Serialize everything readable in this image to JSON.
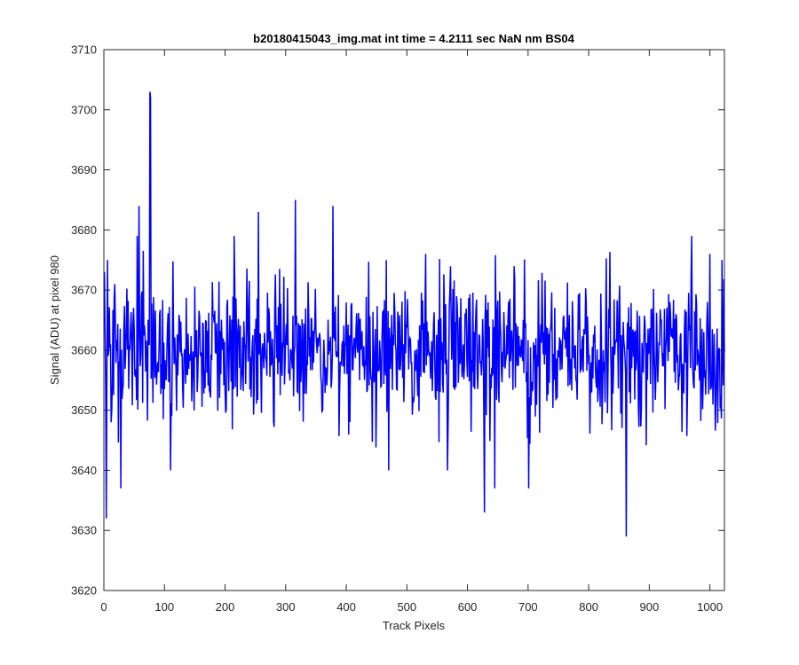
{
  "chart_data": {
    "type": "line",
    "title": "b20180415043_img.mat int time = 4.2111 sec  NaN nm BS04",
    "xlabel": "Track Pixels",
    "ylabel": "Signal (ADU) at pixel 980",
    "xlim": [
      0,
      1024
    ],
    "ylim": [
      3620,
      3710
    ],
    "xticks": [
      "0",
      "100",
      "200",
      "300",
      "400",
      "500",
      "600",
      "700",
      "800",
      "900",
      "1000"
    ],
    "yticks": [
      "3620",
      "3630",
      "3640",
      "3650",
      "3660",
      "3670",
      "3680",
      "3690",
      "3700",
      "3710"
    ],
    "grid": false,
    "legend": "none",
    "line_color": "#0000ff",
    "series": [
      {
        "x_start": 1,
        "x_step": 1,
        "mean": 3660,
        "noise_sd": 6,
        "num_points": 1024,
        "highlights": [
          {
            "x": 1,
            "y": 3673
          },
          {
            "x": 4,
            "y": 3632
          },
          {
            "x": 6,
            "y": 3675
          },
          {
            "x": 12,
            "y": 3648
          },
          {
            "x": 18,
            "y": 3671
          },
          {
            "x": 28,
            "y": 3637
          },
          {
            "x": 55,
            "y": 3679
          },
          {
            "x": 58,
            "y": 3684
          },
          {
            "x": 76,
            "y": 3703
          },
          {
            "x": 77,
            "y": 3702
          },
          {
            "x": 110,
            "y": 3640
          },
          {
            "x": 215,
            "y": 3679
          },
          {
            "x": 255,
            "y": 3683
          },
          {
            "x": 316,
            "y": 3685
          },
          {
            "x": 378,
            "y": 3684
          },
          {
            "x": 470,
            "y": 3640
          },
          {
            "x": 531,
            "y": 3676
          },
          {
            "x": 567,
            "y": 3640
          },
          {
            "x": 628,
            "y": 3633
          },
          {
            "x": 645,
            "y": 3637
          },
          {
            "x": 701,
            "y": 3637
          },
          {
            "x": 862,
            "y": 3629
          },
          {
            "x": 970,
            "y": 3679
          },
          {
            "x": 1000,
            "y": 3676
          },
          {
            "x": 1020,
            "y": 3675
          }
        ]
      }
    ]
  }
}
